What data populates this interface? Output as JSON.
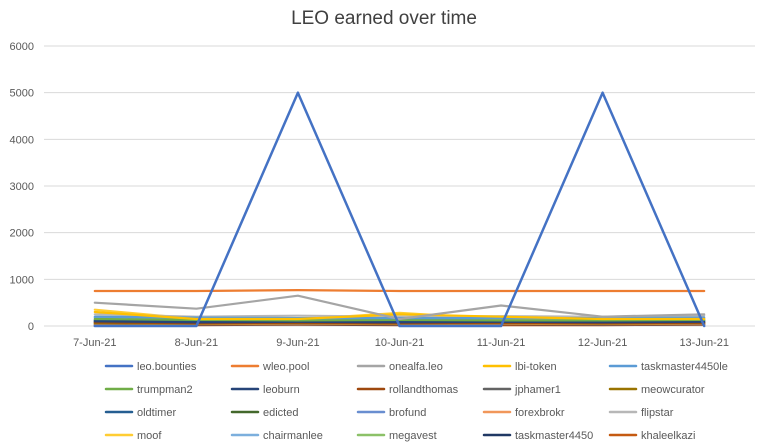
{
  "chart_data": {
    "type": "line",
    "title": "LEO  earned over time",
    "xlabel": "",
    "ylabel": "",
    "categories": [
      "7-Jun-21",
      "8-Jun-21",
      "9-Jun-21",
      "10-Jun-21",
      "11-Jun-21",
      "12-Jun-21",
      "13-Jun-21"
    ],
    "ylim": [
      0,
      6000
    ],
    "yticks": [
      0,
      1000,
      2000,
      3000,
      4000,
      5000,
      6000
    ],
    "grid": true,
    "legend_position": "bottom",
    "series": [
      {
        "name": "leo.bounties",
        "color": "#4472C4",
        "values": [
          0,
          0,
          5000,
          0,
          0,
          5000,
          0
        ]
      },
      {
        "name": "wleo.pool",
        "color": "#ED7D31",
        "values": [
          750,
          750,
          770,
          750,
          750,
          750,
          750
        ]
      },
      {
        "name": "onealfa.leo",
        "color": "#A5A5A5",
        "values": [
          500,
          370,
          650,
          150,
          440,
          200,
          250
        ]
      },
      {
        "name": "lbi-token",
        "color": "#FFC000",
        "values": [
          300,
          150,
          150,
          250,
          200,
          150,
          150
        ]
      },
      {
        "name": "taskmaster4450le",
        "color": "#5B9BD5",
        "values": [
          200,
          180,
          170,
          170,
          170,
          170,
          180
        ]
      },
      {
        "name": "trumpman2",
        "color": "#70AD47",
        "values": [
          150,
          130,
          120,
          130,
          120,
          120,
          130
        ]
      },
      {
        "name": "leoburn",
        "color": "#264478",
        "values": [
          100,
          80,
          90,
          80,
          90,
          80,
          90
        ]
      },
      {
        "name": "rollandthomas",
        "color": "#9E480E",
        "values": [
          80,
          60,
          70,
          60,
          70,
          60,
          70
        ]
      },
      {
        "name": "jphamer1",
        "color": "#636363",
        "values": [
          90,
          70,
          80,
          70,
          80,
          70,
          80
        ]
      },
      {
        "name": "meowcurator",
        "color": "#997300",
        "values": [
          60,
          50,
          60,
          50,
          60,
          50,
          60
        ]
      },
      {
        "name": "oldtimer",
        "color": "#255E91",
        "values": [
          120,
          100,
          110,
          100,
          110,
          100,
          110
        ]
      },
      {
        "name": "edicted",
        "color": "#43682B",
        "values": [
          70,
          60,
          70,
          60,
          70,
          60,
          70
        ]
      },
      {
        "name": "brofund",
        "color": "#698ED0",
        "values": [
          110,
          90,
          100,
          90,
          100,
          90,
          100
        ]
      },
      {
        "name": "forexbrokr",
        "color": "#F1975A",
        "values": [
          50,
          40,
          50,
          40,
          50,
          40,
          50
        ]
      },
      {
        "name": "flipstar",
        "color": "#B7B7B7",
        "values": [
          250,
          200,
          220,
          200,
          210,
          200,
          220
        ]
      },
      {
        "name": "moof",
        "color": "#FFCD33",
        "values": [
          350,
          150,
          140,
          280,
          150,
          140,
          150
        ]
      },
      {
        "name": "chairmanlee",
        "color": "#7CAFDD",
        "values": [
          180,
          170,
          160,
          160,
          160,
          160,
          170
        ]
      },
      {
        "name": "megavest",
        "color": "#8CC168",
        "values": [
          130,
          120,
          110,
          120,
          110,
          110,
          120
        ]
      },
      {
        "name": "taskmaster4450",
        "color": "#203864",
        "values": [
          40,
          30,
          40,
          30,
          40,
          30,
          40
        ]
      },
      {
        "name": "khaleelkazi",
        "color": "#C55A11",
        "values": [
          20,
          20,
          30,
          20,
          20,
          20,
          30
        ]
      }
    ]
  }
}
